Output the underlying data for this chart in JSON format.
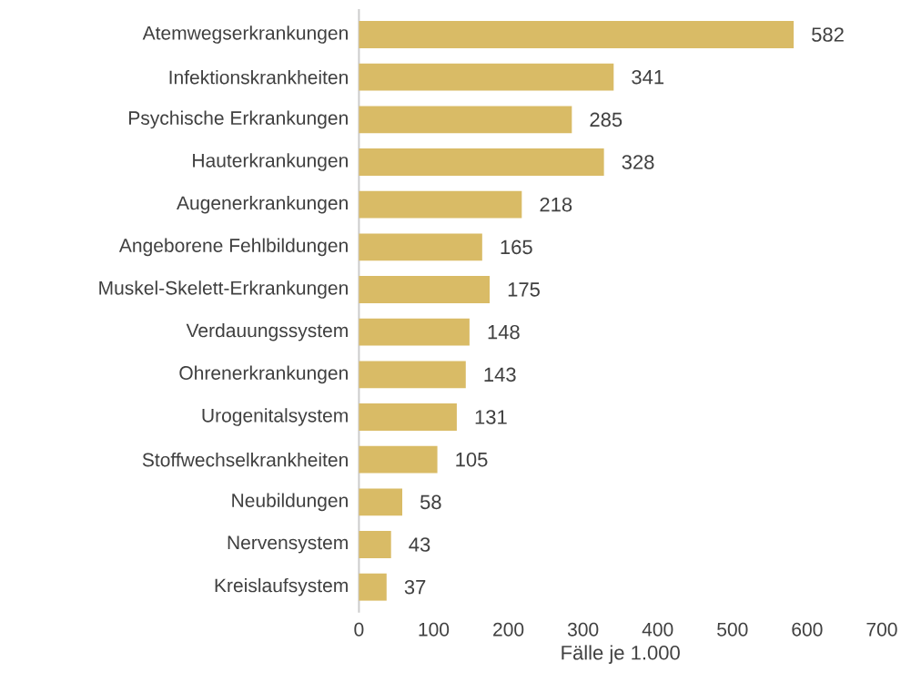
{
  "chart_data": {
    "type": "bar",
    "orientation": "horizontal",
    "xlabel": "Fälle je 1.000",
    "categories": [
      "Atemwegserkrankungen",
      "Infektionskrankheiten",
      "Psychische Erkrankungen",
      "Hauterkrankungen",
      "Augenerkrankungen",
      "Angeborene Fehlbildungen",
      "Muskel-Skelett-Erkrankungen",
      "Verdauungssystem",
      "Ohrenerkrankungen",
      "Urogenitalsystem",
      "Stoffwechselkrankheiten",
      "Neubildungen",
      "Nervensystem",
      "Kreislaufsystem"
    ],
    "values": [
      582,
      341,
      285,
      328,
      218,
      165,
      175,
      148,
      143,
      131,
      105,
      58,
      43,
      37
    ],
    "color": "#d9bb66",
    "xlim": [
      0,
      700
    ],
    "xticks": [
      0,
      100,
      200,
      300,
      400,
      500,
      600,
      700
    ],
    "data_labels": true
  }
}
